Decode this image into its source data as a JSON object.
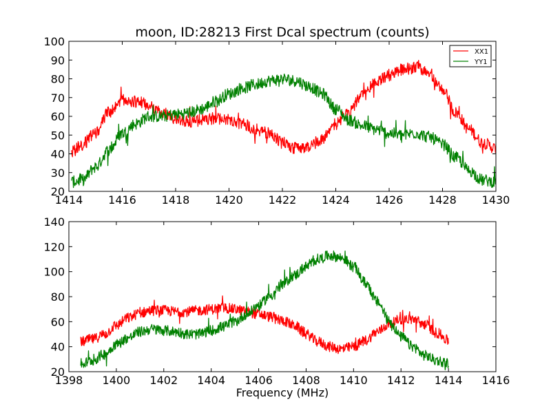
{
  "chart_data": [
    {
      "type": "line",
      "title": "moon, ID:28213 First Dcal spectrum (counts)",
      "xlabel": "",
      "ylabel": "",
      "xlim": [
        1414,
        1430
      ],
      "ylim": [
        20,
        100
      ],
      "xticks": [
        "1414",
        "1416",
        "1418",
        "1420",
        "1422",
        "1424",
        "1426",
        "1428",
        "1430"
      ],
      "yticks": [
        "20",
        "30",
        "40",
        "50",
        "60",
        "70",
        "80",
        "90",
        "100"
      ],
      "grid": false,
      "legend": "top-right",
      "series": [
        {
          "name": "XX1",
          "color": "#ff0000",
          "x": [
            1414.1,
            1414.5,
            1415.0,
            1415.5,
            1416.0,
            1416.5,
            1417.0,
            1417.5,
            1418.0,
            1418.5,
            1419.0,
            1419.5,
            1420.0,
            1420.5,
            1421.0,
            1421.5,
            1422.0,
            1422.5,
            1423.0,
            1423.5,
            1424.0,
            1424.5,
            1425.0,
            1425.5,
            1426.0,
            1426.5,
            1427.0,
            1427.5,
            1428.0,
            1428.5,
            1429.0,
            1429.5,
            1430.0
          ],
          "y": [
            41,
            45,
            51,
            62,
            69,
            68,
            66,
            62,
            59,
            57,
            58,
            59,
            58,
            56,
            53,
            51,
            46,
            43,
            44,
            48,
            56,
            63,
            71,
            78,
            82,
            85,
            86,
            83,
            74,
            62,
            53,
            46,
            43
          ]
        },
        {
          "name": "YY1",
          "color": "#008000",
          "x": [
            1414.1,
            1414.5,
            1415.0,
            1415.5,
            1416.0,
            1416.5,
            1417.0,
            1417.5,
            1418.0,
            1418.5,
            1419.0,
            1419.5,
            1420.0,
            1420.5,
            1421.0,
            1421.5,
            1422.0,
            1422.5,
            1423.0,
            1423.5,
            1424.0,
            1424.5,
            1425.0,
            1425.5,
            1426.0,
            1426.5,
            1427.0,
            1427.5,
            1428.0,
            1428.5,
            1429.0,
            1429.5,
            1430.0
          ],
          "y": [
            25,
            26,
            33,
            42,
            51,
            56,
            60,
            60,
            61,
            62,
            64,
            68,
            72,
            75,
            77,
            79,
            80,
            79,
            76,
            72,
            64,
            58,
            55,
            53,
            51,
            50,
            51,
            49,
            45,
            38,
            31,
            26,
            25
          ]
        }
      ]
    },
    {
      "type": "line",
      "title": "",
      "xlabel": "Frequency (MHz)",
      "ylabel": "",
      "xlim": [
        1398,
        1416
      ],
      "ylim": [
        20,
        140
      ],
      "xticks": [
        "1398",
        "1400",
        "1402",
        "1404",
        "1406",
        "1408",
        "1410",
        "1412",
        "1414",
        "1416"
      ],
      "yticks": [
        "20",
        "40",
        "60",
        "80",
        "100",
        "120",
        "140"
      ],
      "grid": false,
      "series": [
        {
          "name": "XX1",
          "color": "#ff0000",
          "x": [
            1398.5,
            1399.0,
            1399.5,
            1400.0,
            1400.5,
            1401.0,
            1401.5,
            1402.0,
            1402.5,
            1403.0,
            1403.5,
            1404.0,
            1404.5,
            1405.0,
            1405.5,
            1406.0,
            1406.5,
            1407.0,
            1407.5,
            1408.0,
            1408.5,
            1409.0,
            1409.5,
            1410.0,
            1410.5,
            1411.0,
            1411.5,
            1412.0,
            1412.5,
            1413.0,
            1413.5,
            1414.0
          ],
          "y": [
            44,
            46,
            50,
            57,
            63,
            67,
            69,
            69,
            68,
            68,
            69,
            70,
            71,
            70,
            68,
            66,
            64,
            61,
            57,
            50,
            44,
            40,
            38,
            40,
            45,
            52,
            58,
            62,
            62,
            58,
            51,
            45
          ]
        },
        {
          "name": "YY1",
          "color": "#008000",
          "x": [
            1398.5,
            1399.0,
            1399.5,
            1400.0,
            1400.5,
            1401.0,
            1401.5,
            1402.0,
            1402.5,
            1403.0,
            1403.5,
            1404.0,
            1404.5,
            1405.0,
            1405.5,
            1406.0,
            1406.5,
            1407.0,
            1407.5,
            1408.0,
            1408.5,
            1409.0,
            1409.5,
            1410.0,
            1410.5,
            1411.0,
            1411.5,
            1412.0,
            1412.5,
            1413.0,
            1413.5,
            1414.0
          ],
          "y": [
            26,
            29,
            34,
            42,
            47,
            52,
            54,
            53,
            52,
            50,
            50,
            53,
            56,
            60,
            66,
            73,
            81,
            90,
            97,
            104,
            110,
            113,
            111,
            104,
            91,
            76,
            61,
            48,
            40,
            33,
            29,
            27
          ]
        }
      ]
    }
  ]
}
